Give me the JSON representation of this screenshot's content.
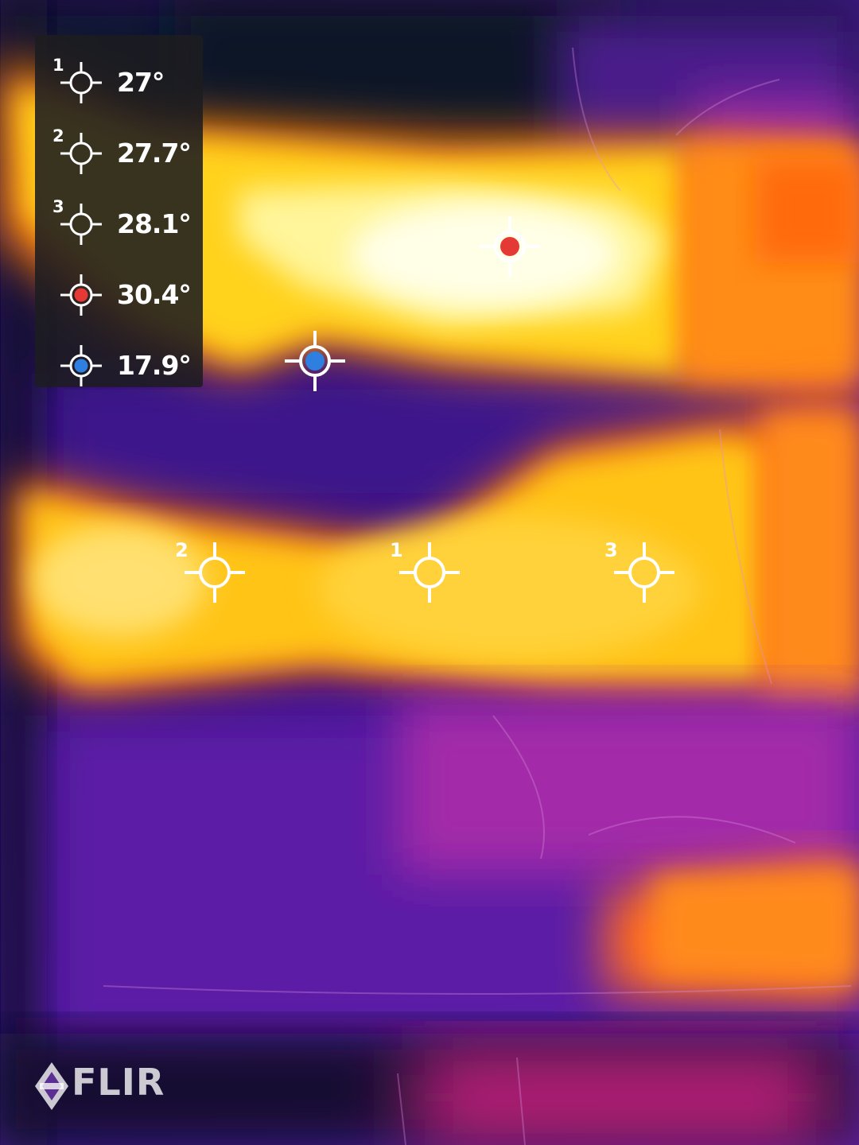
{
  "app": {
    "brand": "FLIR"
  },
  "legend": {
    "items": [
      {
        "index": "1",
        "value": "27°",
        "kind": "spot"
      },
      {
        "index": "2",
        "value": "27.7°",
        "kind": "spot"
      },
      {
        "index": "3",
        "value": "28.1°",
        "kind": "spot"
      },
      {
        "index": "",
        "value": "30.4°",
        "kind": "max"
      },
      {
        "index": "",
        "value": "17.9°",
        "kind": "min"
      }
    ]
  },
  "spots": [
    {
      "index": "1",
      "kind": "spot"
    },
    {
      "index": "2",
      "kind": "spot"
    },
    {
      "index": "3",
      "kind": "spot"
    },
    {
      "index": "",
      "kind": "max"
    },
    {
      "index": "",
      "kind": "min"
    }
  ],
  "colors": {
    "max_marker": "#e53935",
    "min_marker": "#2f7fe0",
    "panel_bg": "#1c1c20",
    "text": "#ffffff"
  },
  "icons": {
    "spot": "crosshair-icon",
    "max": "hot-spot-icon",
    "min": "cold-spot-icon",
    "brand": "flir-logo-icon"
  }
}
